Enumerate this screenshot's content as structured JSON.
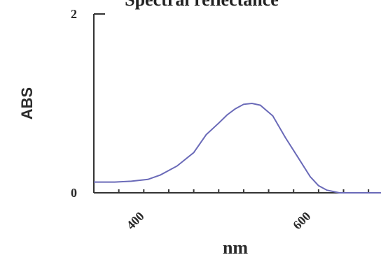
{
  "chart_data": {
    "type": "line",
    "title": "Spectral reflectance",
    "xlabel": "nm",
    "ylabel": "ABS",
    "xlim": [
      345,
      690
    ],
    "ylim": [
      0,
      2
    ],
    "yticks": [
      0,
      2
    ],
    "yticklabels": [
      "0",
      "2"
    ],
    "xticks": [
      345,
      375,
      405,
      435,
      465,
      495,
      525,
      555,
      585,
      615,
      645,
      675
    ],
    "xticklabels": [
      {
        "value": 400,
        "label": "400"
      },
      {
        "value": 600,
        "label": "600"
      }
    ],
    "line_color": "#6a6ab8",
    "series": [
      {
        "x": [
          345,
          370,
          390,
          410,
          425,
          445,
          465,
          480,
          495,
          505,
          515,
          525,
          535,
          545,
          560,
          575,
          590,
          605,
          615,
          625,
          640,
          660,
          690
        ],
        "y": [
          0.12,
          0.12,
          0.13,
          0.15,
          0.2,
          0.3,
          0.45,
          0.65,
          0.78,
          0.87,
          0.94,
          0.99,
          1.0,
          0.98,
          0.86,
          0.62,
          0.4,
          0.18,
          0.08,
          0.03,
          0.0,
          0.0,
          0.0
        ]
      }
    ]
  }
}
